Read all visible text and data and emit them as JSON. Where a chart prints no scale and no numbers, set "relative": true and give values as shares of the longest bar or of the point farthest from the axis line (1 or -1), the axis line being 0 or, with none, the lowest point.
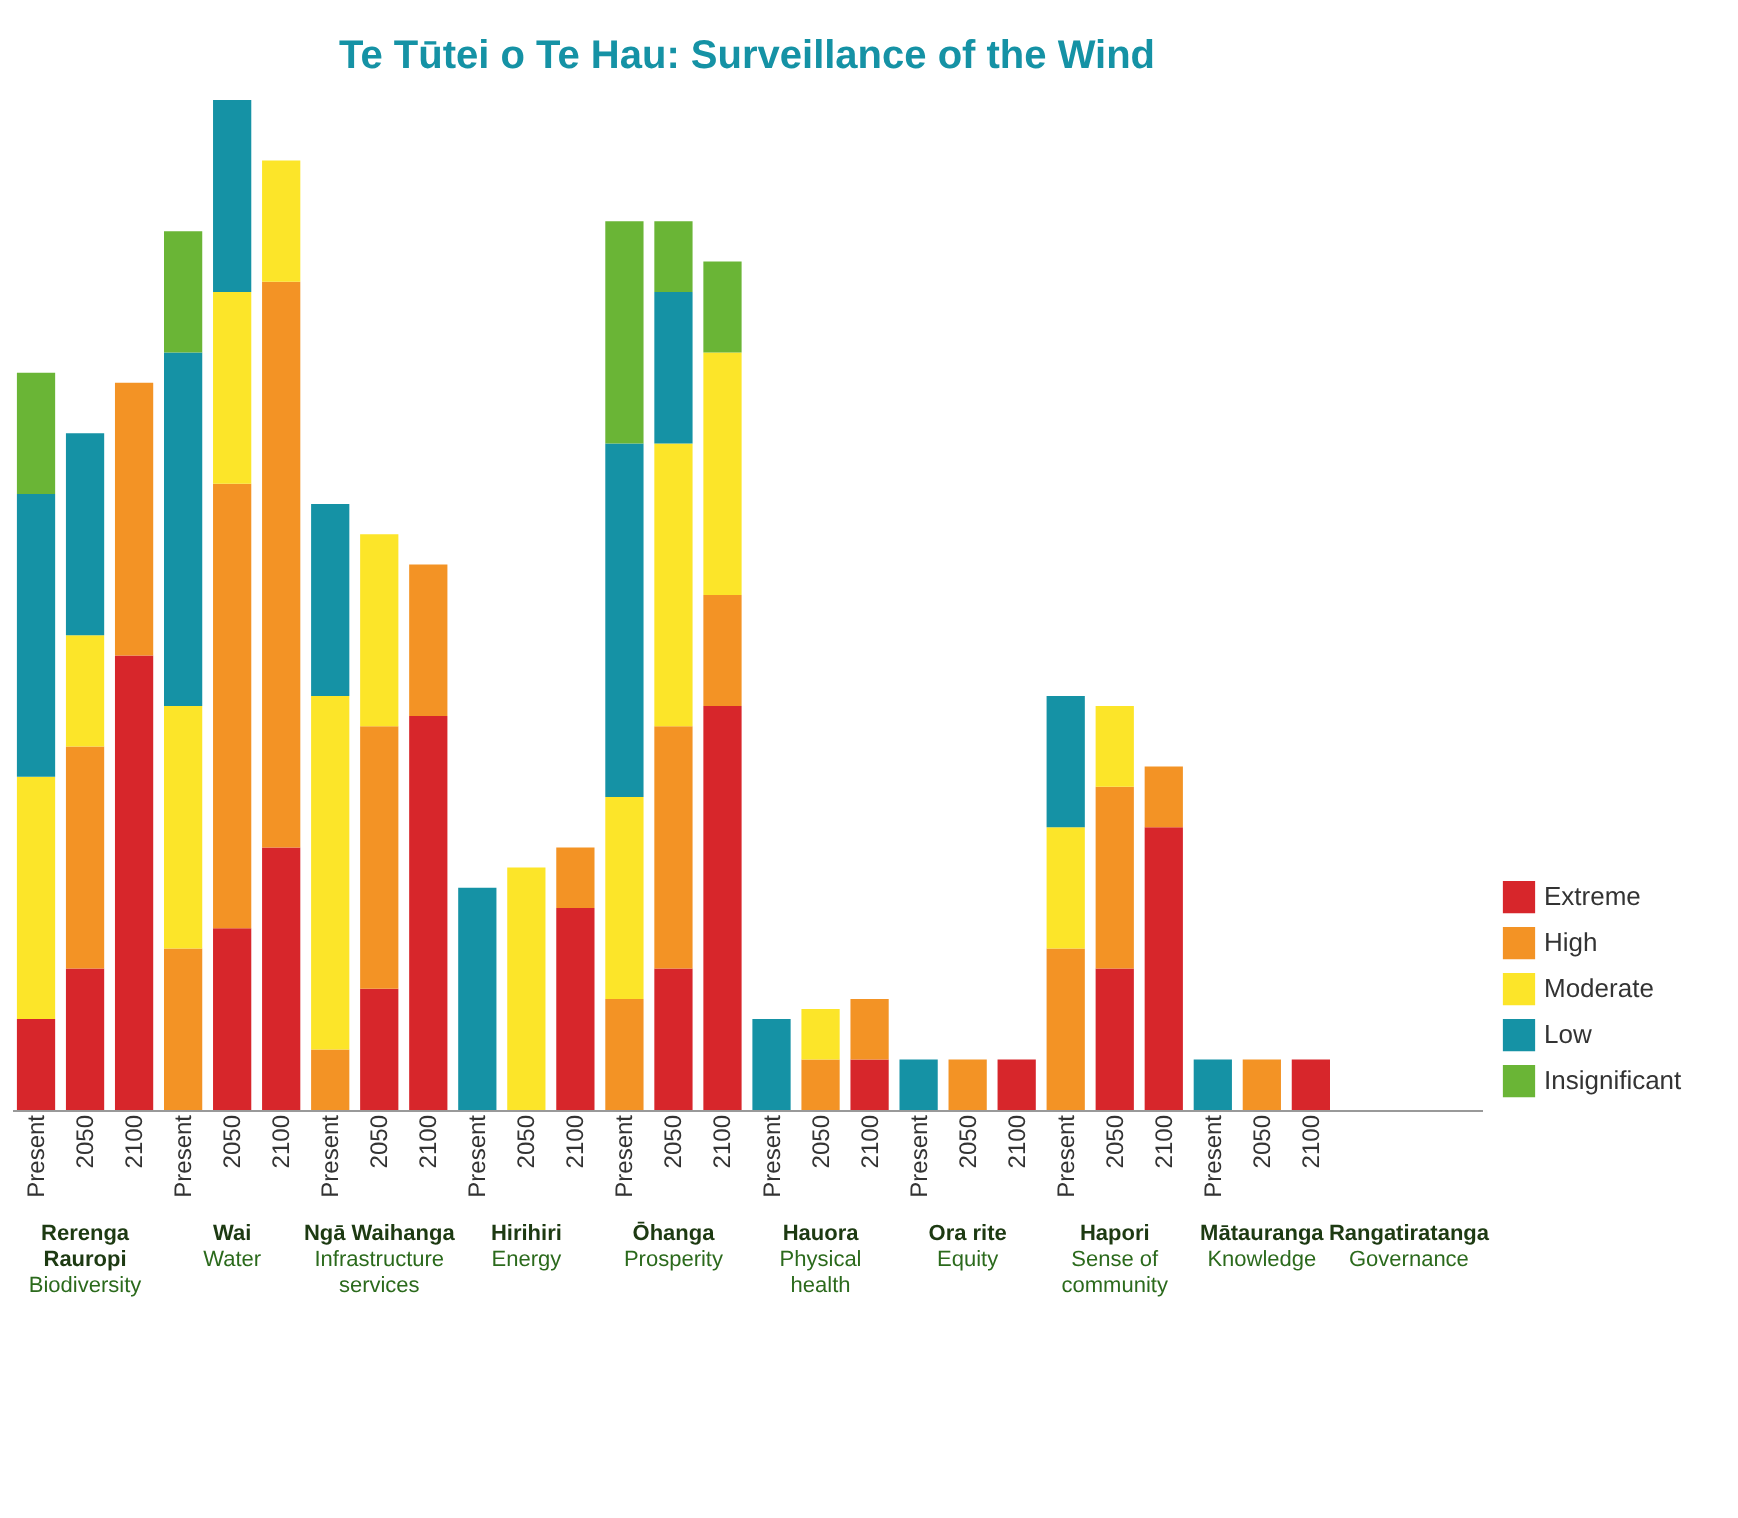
{
  "chart_data": {
    "type": "bar",
    "title": "Te Tūtei o Te Hau: Surveillance of the Wind",
    "stacked": true,
    "relative": true,
    "legend": "bottom right",
    "categories": [
      "Present",
      "2050",
      "2100",
      "Present",
      "2050",
      "2100",
      "Present",
      "2050",
      "2100",
      "Present",
      "2050",
      "2100",
      "Present",
      "2050",
      "2100",
      "Present",
      "2050",
      "2100",
      "Present",
      "2050",
      "2100",
      "Present",
      "2050",
      "2100",
      "Present",
      "2050",
      "2100",
      null,
      null,
      null
    ],
    "annotations": [
      "Rerenga Rauropi",
      "Biodiversity",
      "Wai",
      "Water",
      "Ngā Waihanga",
      "Infrastructure services",
      "Hirihiri",
      "Energy",
      "Ōhanga",
      "Prosperity",
      "Hauora",
      "Physical health",
      "Ora rite",
      "Equity",
      "Hapori",
      "Sense of community",
      "Mātauranga",
      "Knowledge",
      "Rangatiratanga",
      "Governance"
    ],
    "series": [
      {
        "name": "Extreme",
        "color": "#d7262b",
        "values": [
          0.09,
          0.14,
          0.45,
          null,
          0.18,
          0.26,
          null,
          0.12,
          0.39,
          null,
          null,
          0.2,
          null,
          0.14,
          0.4,
          null,
          null,
          0.05,
          null,
          null,
          0.05,
          null,
          0.14,
          0.28,
          null,
          null,
          0.05,
          null,
          null,
          null
        ]
      },
      {
        "name": "High",
        "color": "#f39325",
        "values": [
          null,
          0.22,
          0.27,
          0.16,
          0.44,
          0.56,
          0.06,
          0.26,
          0.15,
          null,
          null,
          0.06,
          0.11,
          0.24,
          0.11,
          null,
          0.05,
          0.06,
          null,
          0.05,
          null,
          0.16,
          0.18,
          0.06,
          null,
          0.05,
          null,
          null,
          null,
          null
        ]
      },
      {
        "name": "Moderate",
        "color": "#fce529",
        "values": [
          0.24,
          0.11,
          null,
          0.24,
          0.19,
          0.12,
          0.35,
          0.19,
          null,
          null,
          0.24,
          null,
          0.2,
          0.28,
          0.24,
          null,
          0.05,
          null,
          null,
          null,
          null,
          0.12,
          0.08,
          null,
          null,
          null,
          null,
          null,
          null,
          null
        ]
      },
      {
        "name": "Low",
        "color": "#1592a5",
        "values": [
          0.28,
          0.2,
          null,
          0.35,
          0.19,
          null,
          0.19,
          null,
          null,
          0.22,
          null,
          null,
          0.35,
          0.15,
          null,
          0.09,
          null,
          null,
          0.05,
          null,
          null,
          0.13,
          null,
          null,
          0.05,
          null,
          null,
          null,
          null,
          null
        ]
      },
      {
        "name": "Insignificant",
        "color": "#6ab536",
        "values": [
          0.12,
          null,
          null,
          0.12,
          null,
          null,
          null,
          null,
          null,
          null,
          null,
          null,
          0.22,
          0.07,
          0.09,
          null,
          null,
          null,
          null,
          null,
          null,
          null,
          null,
          null,
          null,
          null,
          null,
          null,
          null,
          null
        ]
      }
    ]
  }
}
